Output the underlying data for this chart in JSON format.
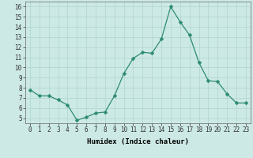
{
  "x": [
    0,
    1,
    2,
    3,
    4,
    5,
    6,
    7,
    8,
    9,
    10,
    11,
    12,
    13,
    14,
    15,
    16,
    17,
    18,
    19,
    20,
    21,
    22,
    23
  ],
  "y": [
    7.8,
    7.2,
    7.2,
    6.8,
    6.3,
    4.8,
    5.1,
    5.5,
    5.6,
    7.2,
    9.4,
    10.9,
    11.5,
    11.4,
    12.8,
    16.0,
    14.5,
    13.2,
    10.5,
    8.7,
    8.6,
    7.4,
    6.5,
    6.5
  ],
  "line_color": "#2e8b73",
  "marker": "D",
  "marker_size": 2.5,
  "bg_color": "#cce9e5",
  "grid_color": "#b0d4cf",
  "xlabel": "Humidex (Indice chaleur)",
  "xlim": [
    -0.5,
    23.5
  ],
  "ylim": [
    4.5,
    16.5
  ],
  "yticks": [
    5,
    6,
    7,
    8,
    9,
    10,
    11,
    12,
    13,
    14,
    15,
    16
  ],
  "xticks": [
    0,
    1,
    2,
    3,
    4,
    5,
    6,
    7,
    8,
    9,
    10,
    11,
    12,
    13,
    14,
    15,
    16,
    17,
    18,
    19,
    20,
    21,
    22,
    23
  ],
  "label_fontsize": 6.5,
  "tick_fontsize": 5.5
}
